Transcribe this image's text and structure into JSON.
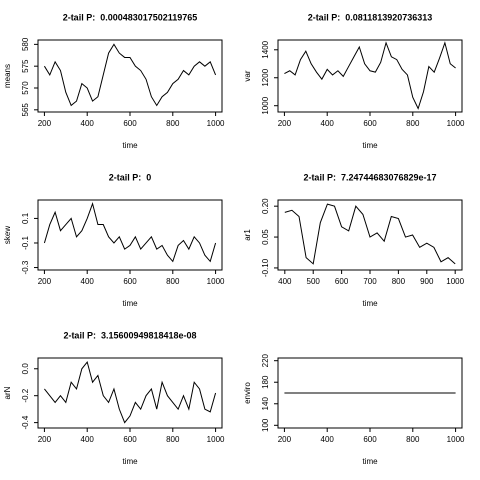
{
  "chart_data": [
    {
      "type": "line",
      "title": "2-tail P:  0.000483017502119765",
      "xlabel": "time",
      "ylabel": "means",
      "x": [
        200,
        225,
        250,
        275,
        300,
        325,
        350,
        375,
        400,
        425,
        450,
        475,
        500,
        525,
        550,
        575,
        600,
        625,
        650,
        675,
        700,
        725,
        750,
        775,
        800,
        825,
        850,
        875,
        900,
        925,
        950,
        975,
        1000
      ],
      "values": [
        575,
        573,
        576,
        574,
        569,
        566,
        567,
        571,
        570,
        567,
        568,
        573,
        578,
        580,
        578,
        577,
        577,
        575,
        574,
        572,
        568,
        566,
        568,
        569,
        571,
        572,
        574,
        573,
        575,
        576,
        575,
        576,
        573
      ],
      "xlim": [
        170,
        1030
      ],
      "ylim": [
        564.5,
        581
      ],
      "xticks": [
        200,
        400,
        600,
        800,
        1000
      ],
      "yticks": [
        565,
        570,
        575,
        580
      ]
    },
    {
      "type": "line",
      "title": "2-tail P:  0.0811813920736313",
      "xlabel": "time",
      "ylabel": "var",
      "x": [
        200,
        225,
        250,
        275,
        300,
        325,
        350,
        375,
        400,
        425,
        450,
        475,
        500,
        525,
        550,
        575,
        600,
        625,
        650,
        675,
        700,
        725,
        750,
        775,
        800,
        825,
        850,
        875,
        900,
        925,
        950,
        975,
        1000
      ],
      "values": [
        1230,
        1250,
        1220,
        1330,
        1390,
        1300,
        1240,
        1190,
        1260,
        1220,
        1250,
        1210,
        1280,
        1350,
        1420,
        1300,
        1250,
        1240,
        1310,
        1450,
        1350,
        1330,
        1260,
        1220,
        1060,
        980,
        1100,
        1280,
        1240,
        1340,
        1450,
        1300,
        1270
      ],
      "xlim": [
        170,
        1030
      ],
      "ylim": [
        955,
        1470
      ],
      "xticks": [
        200,
        400,
        600,
        800,
        1000
      ],
      "yticks": [
        1000,
        1200,
        1400
      ]
    },
    {
      "type": "line",
      "title": "2-tail P:  0",
      "xlabel": "time",
      "ylabel": "skew",
      "x": [
        200,
        225,
        250,
        275,
        300,
        325,
        350,
        375,
        400,
        425,
        450,
        475,
        500,
        525,
        550,
        575,
        600,
        625,
        650,
        675,
        700,
        725,
        750,
        775,
        800,
        825,
        850,
        875,
        900,
        925,
        950,
        975,
        1000
      ],
      "values": [
        -0.1,
        0.05,
        0.15,
        0.0,
        0.05,
        0.1,
        -0.05,
        0.0,
        0.1,
        0.22,
        0.05,
        0.05,
        -0.05,
        -0.1,
        -0.05,
        -0.15,
        -0.12,
        -0.05,
        -0.15,
        -0.1,
        -0.05,
        -0.15,
        -0.12,
        -0.2,
        -0.25,
        -0.12,
        -0.08,
        -0.15,
        -0.05,
        -0.1,
        -0.2,
        -0.25,
        -0.1
      ],
      "xlim": [
        170,
        1030
      ],
      "ylim": [
        -0.32,
        0.25
      ],
      "xticks": [
        200,
        400,
        600,
        800,
        1000
      ],
      "yticks": [
        -0.3,
        -0.1,
        0.1
      ]
    },
    {
      "type": "line",
      "title": "2-tail P:  7.24744683076829e-17",
      "xlabel": "time",
      "ylabel": "ar1",
      "x": [
        400,
        425,
        450,
        475,
        500,
        525,
        550,
        575,
        600,
        625,
        650,
        675,
        700,
        725,
        750,
        775,
        800,
        825,
        850,
        875,
        900,
        925,
        950,
        975,
        1000
      ],
      "values": [
        0.17,
        0.18,
        0.15,
        -0.05,
        -0.08,
        0.12,
        0.21,
        0.2,
        0.1,
        0.08,
        0.2,
        0.16,
        0.05,
        0.07,
        0.03,
        0.15,
        0.14,
        0.05,
        0.06,
        0.0,
        0.02,
        0.0,
        -0.07,
        -0.05,
        -0.08
      ],
      "xlim": [
        376,
        1024
      ],
      "ylim": [
        -0.11,
        0.23
      ],
      "xticks": [
        400,
        500,
        600,
        700,
        800,
        900,
        1000
      ],
      "yticks": [
        {
          "value": -0.1,
          "label": "-0.10"
        },
        {
          "value": 0.05,
          "label": "0.05"
        },
        {
          "value": 0.2,
          "label": "0.20"
        }
      ]
    },
    {
      "type": "line",
      "title": "2-tail P:  3.15600949818418e-08",
      "xlabel": "time",
      "ylabel": "arN",
      "x": [
        200,
        225,
        250,
        275,
        300,
        325,
        350,
        375,
        400,
        425,
        450,
        475,
        500,
        525,
        550,
        575,
        600,
        625,
        650,
        675,
        700,
        725,
        750,
        775,
        800,
        825,
        850,
        875,
        900,
        925,
        950,
        975,
        1000
      ],
      "values": [
        -0.15,
        -0.2,
        -0.25,
        -0.2,
        -0.25,
        -0.1,
        -0.15,
        0.0,
        0.05,
        -0.1,
        -0.05,
        -0.2,
        -0.25,
        -0.15,
        -0.3,
        -0.4,
        -0.35,
        -0.25,
        -0.3,
        -0.2,
        -0.15,
        -0.3,
        -0.1,
        -0.2,
        -0.25,
        -0.3,
        -0.2,
        -0.3,
        -0.1,
        -0.15,
        -0.3,
        -0.32,
        -0.18
      ],
      "xlim": [
        170,
        1030
      ],
      "ylim": [
        -0.44,
        0.08
      ],
      "xticks": [
        200,
        400,
        600,
        800,
        1000
      ],
      "yticks": [
        -0.4,
        -0.2,
        {
          "value": 0,
          "label": "0.0"
        }
      ]
    },
    {
      "type": "line",
      "xlabel": "time",
      "ylabel": "enviro",
      "x": [
        200,
        1000
      ],
      "values": [
        160,
        160
      ],
      "xlim": [
        170,
        1030
      ],
      "ylim": [
        95,
        225
      ],
      "xticks": [
        200,
        400,
        600,
        800,
        1000
      ],
      "yticks": [
        100,
        140,
        180,
        220
      ]
    }
  ]
}
